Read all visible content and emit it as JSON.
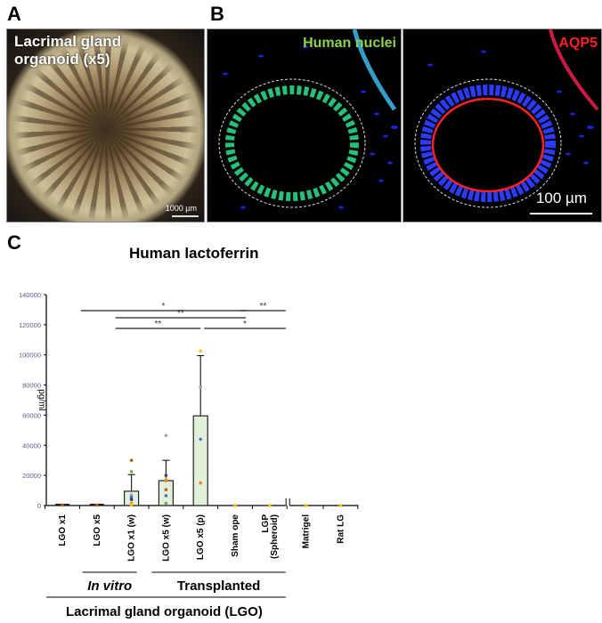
{
  "panels": {
    "A": {
      "label": "A",
      "title_line1": "Lacrimal gland",
      "title_line2": "organoid (x5)",
      "scale_bar": "1000 µm"
    },
    "B": {
      "label": "B",
      "left_channel": "Human nuclei",
      "right_channel": "AQP5",
      "scale_bar": "100 µm",
      "colors": {
        "nuclei_label": "#8fd14f",
        "aqp5_label": "#ff2020",
        "dapi": "#1a2cff"
      }
    },
    "C": {
      "label": "C"
    }
  },
  "chart_data": {
    "type": "bar",
    "title": "Human  lactoferrin",
    "ylabel": "pg/ml",
    "xlabel": "Lacrimal gland organoid (LGO)",
    "ylim": [
      0,
      140000
    ],
    "yticks": [
      0,
      20000,
      40000,
      60000,
      80000,
      100000,
      120000,
      140000
    ],
    "ytick_labels": [
      "0",
      "20000",
      "40000",
      "60000",
      "80000",
      "100000",
      "120000",
      "140000"
    ],
    "categories": [
      "LGO x1",
      "LGO x5",
      "LGO x1 (w)",
      "LGO x5 (w)",
      "LGO x5 (p)",
      "Sham ope",
      "LGP (Spheroid)",
      "Matrigel",
      "Rat LG"
    ],
    "values": [
      300,
      300,
      9500,
      16500,
      59500,
      0,
      0,
      0,
      0
    ],
    "error_upper": [
      300,
      300,
      20500,
      30000,
      99500,
      0,
      0,
      0,
      0
    ],
    "bar_fill": "#e2efd9",
    "points": [
      [
        {
          "y": 300,
          "c": "#c55a11"
        }
      ],
      [
        {
          "y": 300,
          "c": "#c55a11"
        }
      ],
      [
        {
          "y": 30000,
          "c": "#c55a11"
        },
        {
          "y": 22500,
          "c": "#70ad47"
        },
        {
          "y": 7000,
          "c": "#a5a5a5"
        },
        {
          "y": 5500,
          "c": "#4472c4"
        },
        {
          "y": 4000,
          "c": "#264478"
        },
        {
          "y": 1500,
          "c": "#ed7d31"
        },
        {
          "y": 500,
          "c": "#ffc000"
        }
      ],
      [
        {
          "y": 46500,
          "c": "#a5a5a5"
        },
        {
          "y": 20000,
          "c": "#264478"
        },
        {
          "y": 17500,
          "c": "#ffc000"
        },
        {
          "y": 16500,
          "c": "#ed7d31"
        },
        {
          "y": 10500,
          "c": "#c55a11"
        },
        {
          "y": 6500,
          "c": "#4472c4"
        },
        {
          "y": 1500,
          "c": "#70ad47"
        }
      ],
      [
        {
          "y": 102500,
          "c": "#ffc000"
        },
        {
          "y": 78500,
          "c": "#a5a5a5"
        },
        {
          "y": 44000,
          "c": "#4472c4"
        },
        {
          "y": 15000,
          "c": "#ed7d31"
        }
      ],
      [
        {
          "y": 0,
          "c": "#ffc000"
        }
      ],
      [
        {
          "y": 0,
          "c": "#ffc000"
        }
      ],
      [
        {
          "y": 0,
          "c": "#ffc000"
        }
      ],
      [
        {
          "y": 0,
          "c": "#ffc000"
        }
      ]
    ],
    "significance": [
      {
        "from": 1,
        "to": 5,
        "label": "*",
        "level": 1
      },
      {
        "from": 5,
        "to": 6,
        "label": "**",
        "level": 1
      },
      {
        "from": 2,
        "to": 5,
        "label": "**",
        "level": 2
      },
      {
        "from": 2,
        "to": 4,
        "label": "**",
        "level": 3
      },
      {
        "from": 4,
        "to": 6,
        "label": "*",
        "level": 3
      }
    ],
    "group_labels": [
      {
        "label": "In vitro",
        "italic": true,
        "from": 1,
        "to": 2
      },
      {
        "label": "Transplanted",
        "italic": false,
        "from": 3,
        "to": 6
      }
    ],
    "axis_break_between": [
      6,
      7
    ]
  }
}
